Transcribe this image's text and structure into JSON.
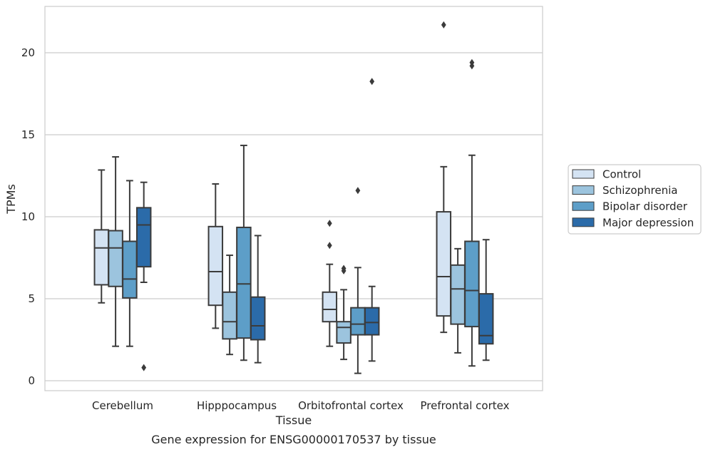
{
  "chart_data": {
    "type": "box",
    "xlabel": "Tissue",
    "ylabel": "TPMs",
    "caption": "Gene expression for ENSG00000170537 by tissue",
    "ylim": [
      -0.6,
      22.8
    ],
    "yticks": [
      0,
      5,
      10,
      15,
      20
    ],
    "grid": "horizontal",
    "legend_position": "right",
    "categories": [
      "Cerebellum",
      "Hipppocampus",
      "Orbitofrontal cortex",
      "Prefrontal cortex"
    ],
    "series": [
      {
        "name": "Control",
        "color": "#d4e3f3",
        "boxes": [
          {
            "whislo": 4.75,
            "q1": 5.85,
            "med": 8.1,
            "q3": 9.2,
            "whishi": 12.85,
            "fliers": []
          },
          {
            "whislo": 3.2,
            "q1": 4.6,
            "med": 6.65,
            "q3": 9.4,
            "whishi": 12.0,
            "fliers": []
          },
          {
            "whislo": 2.1,
            "q1": 3.6,
            "med": 4.35,
            "q3": 5.4,
            "whishi": 7.1,
            "fliers": [
              8.25,
              9.6
            ]
          },
          {
            "whislo": 2.95,
            "q1": 3.95,
            "med": 6.35,
            "q3": 10.3,
            "whishi": 13.05,
            "fliers": [
              21.7
            ]
          }
        ]
      },
      {
        "name": "Schizophrenia",
        "color": "#9cc4de",
        "boxes": [
          {
            "whislo": 2.1,
            "q1": 5.75,
            "med": 8.1,
            "q3": 9.15,
            "whishi": 13.65,
            "fliers": []
          },
          {
            "whislo": 1.6,
            "q1": 2.55,
            "med": 3.6,
            "q3": 5.4,
            "whishi": 7.65,
            "fliers": []
          },
          {
            "whislo": 1.3,
            "q1": 2.3,
            "med": 3.25,
            "q3": 3.6,
            "whishi": 5.55,
            "fliers": [
              6.7,
              6.85
            ]
          },
          {
            "whislo": 1.7,
            "q1": 3.45,
            "med": 5.6,
            "q3": 7.05,
            "whishi": 8.05,
            "fliers": []
          }
        ]
      },
      {
        "name": "Bipolar disorder",
        "color": "#5d9ec8",
        "boxes": [
          {
            "whislo": 2.1,
            "q1": 5.05,
            "med": 6.2,
            "q3": 8.5,
            "whishi": 12.2,
            "fliers": []
          },
          {
            "whislo": 1.25,
            "q1": 2.6,
            "med": 5.9,
            "q3": 9.35,
            "whishi": 14.35,
            "fliers": []
          },
          {
            "whislo": 0.45,
            "q1": 2.8,
            "med": 3.45,
            "q3": 4.45,
            "whishi": 6.9,
            "fliers": [
              11.6
            ]
          },
          {
            "whislo": 0.9,
            "q1": 3.3,
            "med": 5.5,
            "q3": 8.5,
            "whishi": 13.75,
            "fliers": [
              19.2,
              19.4
            ]
          }
        ]
      },
      {
        "name": "Major depression",
        "color": "#2b6ba9",
        "boxes": [
          {
            "whislo": 6.0,
            "q1": 6.95,
            "med": 9.5,
            "q3": 10.55,
            "whishi": 12.1,
            "fliers": [
              0.8
            ]
          },
          {
            "whislo": 1.1,
            "q1": 2.5,
            "med": 3.35,
            "q3": 5.1,
            "whishi": 8.85,
            "fliers": []
          },
          {
            "whislo": 1.2,
            "q1": 2.8,
            "med": 3.55,
            "q3": 4.45,
            "whishi": 5.75,
            "fliers": [
              18.25
            ]
          },
          {
            "whislo": 1.25,
            "q1": 2.25,
            "med": 2.75,
            "q3": 5.3,
            "whishi": 8.6,
            "fliers": []
          }
        ]
      }
    ]
  }
}
